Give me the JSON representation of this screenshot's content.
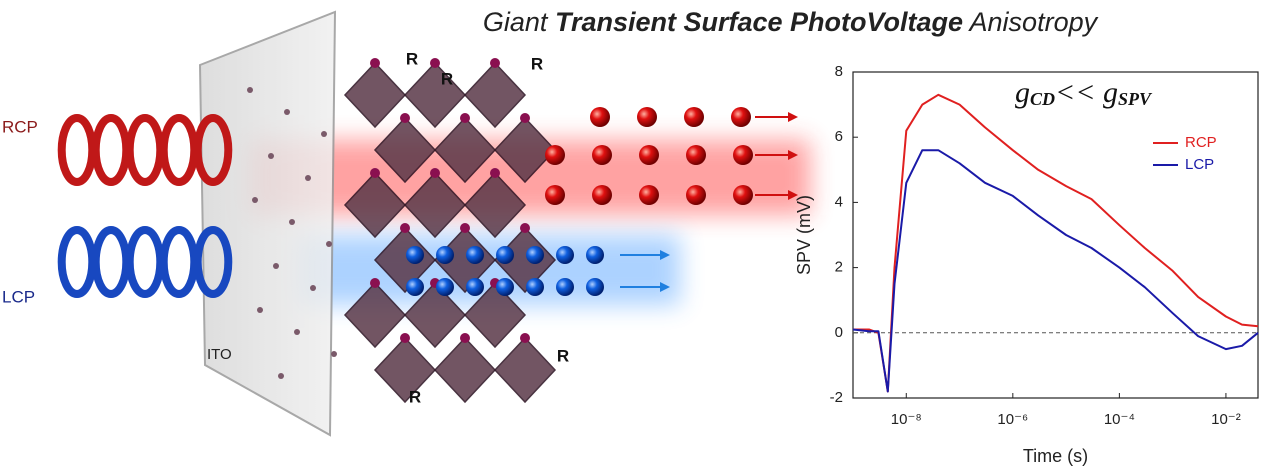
{
  "title_parts": [
    "Giant ",
    "Transient Surface PhotoVoltage",
    " Anisotropy"
  ],
  "illustration": {
    "labels": [
      "RCP",
      "LCP",
      "ITO",
      "R",
      "R",
      "R",
      "R",
      "R"
    ]
  },
  "chart_data": {
    "type": "line",
    "annotation": [
      "g",
      "CD",
      "<< g",
      "SPV"
    ],
    "x_label": "Time (s)",
    "y_label": "SPV (mV)",
    "log_x": true,
    "grid": false,
    "legend": "upper right",
    "hline": 0,
    "xlim": [
      1e-09,
      0.04
    ],
    "ylim": [
      -2,
      8
    ],
    "xticks": [
      {
        "value": 1e-08,
        "label": "10⁻⁸"
      },
      {
        "value": 1e-06,
        "label": "10⁻⁶"
      },
      {
        "value": 0.0001,
        "label": "10⁻⁴"
      },
      {
        "value": 0.01,
        "label": "10⁻²"
      }
    ],
    "yticks": [
      -2,
      0,
      2,
      4,
      6,
      8
    ],
    "x": [
      1e-09,
      2e-09,
      3e-09,
      4.5e-09,
      6e-09,
      1e-08,
      2e-08,
      4e-08,
      1e-07,
      3e-07,
      1e-06,
      3e-06,
      1e-05,
      3e-05,
      0.0001,
      0.0003,
      0.001,
      0.003,
      0.01,
      0.02,
      0.04
    ],
    "series": [
      {
        "name": "RCP",
        "color": "#e02020",
        "values": [
          0.1,
          0.1,
          0.0,
          -1.8,
          2.0,
          6.2,
          7.0,
          7.3,
          7.0,
          6.3,
          5.6,
          5.0,
          4.5,
          4.1,
          3.3,
          2.6,
          1.9,
          1.1,
          0.5,
          0.25,
          0.2
        ]
      },
      {
        "name": "LCP",
        "color": "#1a1aa8",
        "values": [
          0.1,
          0.05,
          0.05,
          -1.8,
          1.5,
          4.6,
          5.6,
          5.6,
          5.2,
          4.6,
          4.2,
          3.6,
          3.0,
          2.6,
          2.0,
          1.4,
          0.6,
          -0.1,
          -0.5,
          -0.4,
          0.0
        ]
      }
    ]
  }
}
